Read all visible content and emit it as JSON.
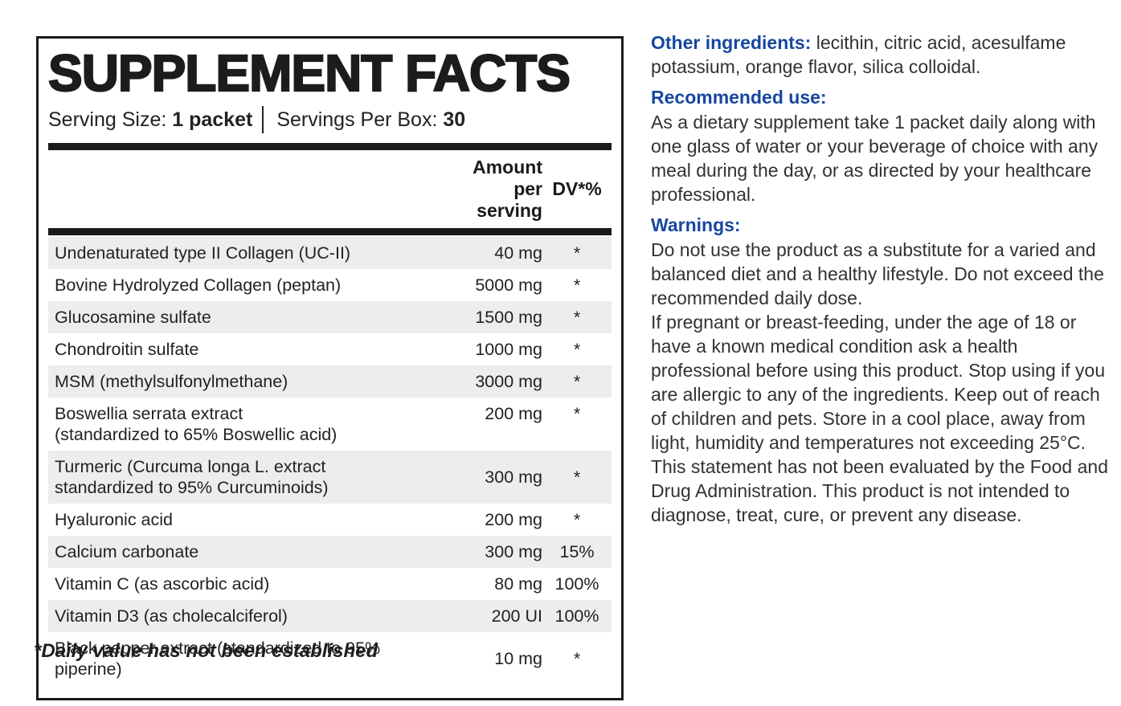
{
  "colors": {
    "accent_blue": "#17479E",
    "bar_black": "#1A1A1A",
    "row_gray": "#EDEDED"
  },
  "supplement_panel": {
    "title": "SUPPLEMENT FACTS",
    "serving_size_label": "Serving Size:",
    "serving_size_value": "1 packet",
    "servings_label": "Servings Per Box:",
    "servings_value": "30",
    "columns": {
      "amount": "Amount per serving",
      "dv": "DV*%"
    },
    "rows": [
      {
        "name_lines": [
          "Undenaturated type II Collagen (UC-II)"
        ],
        "amount": "40 mg",
        "dv": "*"
      },
      {
        "name_lines": [
          "Bovine Hydrolyzed Collagen (peptan)"
        ],
        "amount": "5000 mg",
        "dv": "*"
      },
      {
        "name_lines": [
          "Glucosamine sulfate"
        ],
        "amount": "1500 mg",
        "dv": "*"
      },
      {
        "name_lines": [
          "Chondroitin sulfate"
        ],
        "amount": "1000 mg",
        "dv": "*"
      },
      {
        "name_lines": [
          "MSM (methylsulfonylmethane)"
        ],
        "amount": "3000 mg",
        "dv": "*"
      },
      {
        "name_lines": [
          "Boswellia serrata extract",
          "(standardized to 65% Boswellic acid)"
        ],
        "amount": "200 mg",
        "dv": "*"
      },
      {
        "name_lines": [
          "Turmeric (Curcuma longa L. extract",
          "standardized to 95% Curcuminoids)"
        ],
        "amount": "300 mg",
        "dv": "*"
      },
      {
        "name_lines": [
          "Hyaluronic acid"
        ],
        "amount": "200 mg",
        "dv": "*"
      },
      {
        "name_lines": [
          "Calcium carbonate"
        ],
        "amount": "300 mg",
        "dv": "15%"
      },
      {
        "name_lines": [
          "Vitamin C (as ascorbic acid)"
        ],
        "amount": "80 mg",
        "dv": "100%"
      },
      {
        "name_lines": [
          "Vitamin D3 (as cholecalciferol)"
        ],
        "amount": "200 UI",
        "dv": "100%"
      },
      {
        "name_lines": [
          "Black pepper extract (standardized to 95% piperine)"
        ],
        "amount": "10 mg",
        "dv": "*"
      }
    ]
  },
  "footnote": "*Daily value has not been established",
  "right_column": {
    "other_ingredients": {
      "heading": "Other ingredients:",
      "text": "lecithin, citric acid, acesulfame potassium, orange flavor, silica colloidal."
    },
    "recommended_use": {
      "heading": "Recommended use:",
      "text": "As a dietary supplement take 1 packet daily along with one glass of water or your beverage of choice with any meal during the day, or as directed by your healthcare professional."
    },
    "warnings": {
      "heading": "Warnings:",
      "para1": "Do not use the product as a substitute for a varied and balanced diet and a healthy lifestyle. Do not exceed the recommended daily dose.",
      "para2": "If pregnant or breast-feeding, under the age of 18 or have a known medical condition ask a health professional before using this product. Stop using if you are allergic to any of the ingredients. Keep out of reach of children and pets. Store in a cool place, away from light, humidity and temperatures not exceeding 25°C. This statement has not been evaluated by the Food and Drug Administration. This product is not intended to diagnose, treat, cure, or prevent any disease."
    }
  }
}
